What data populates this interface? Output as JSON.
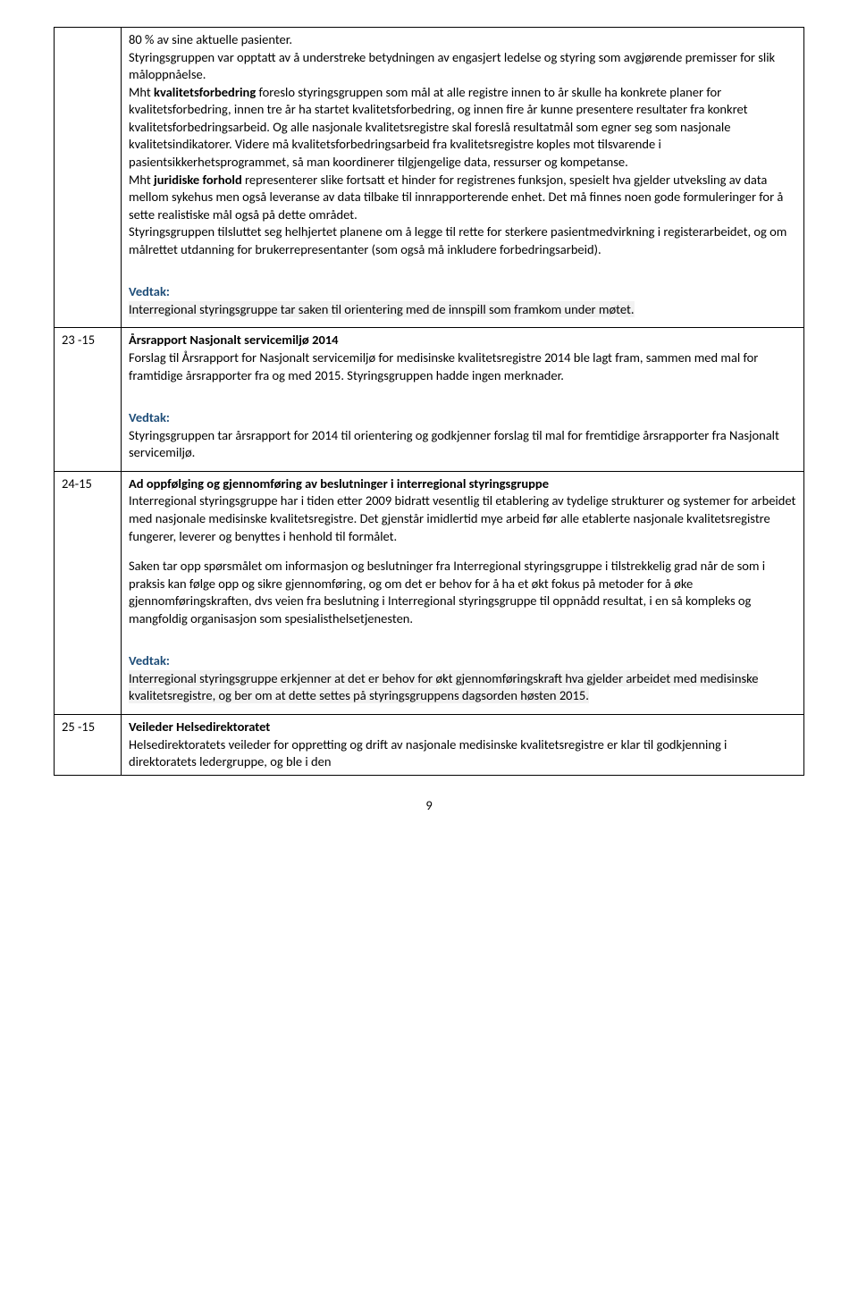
{
  "rows": [
    {
      "left": "",
      "content": {
        "p1a": "80 % av sine aktuelle pasienter.",
        "p1b": "Styringsgruppen var opptatt av å understreke betydningen av engasjert ledelse og styring som avgjørende premisser for slik måloppnåelse.",
        "p2_pre": "Mht ",
        "p2_b": "kvalitetsforbedring",
        "p2_post": " foreslo styringsgruppen som mål at alle registre innen to år skulle ha konkrete planer for kvalitetsforbedring, innen tre år ha startet kvalitetsforbedring, og innen fire år kunne presentere resultater fra konkret kvalitetsforbedringsarbeid. Og alle nasjonale kvalitetsregistre skal foreslå resultatmål som egner seg som nasjonale kvalitetsindikatorer. Videre må kvalitetsforbedringsarbeid fra kvalitetsregistre koples mot tilsvarende i pasientsikkerhetsprogrammet, så man koordinerer tilgjengelige data, ressurser og kompetanse.",
        "p3_pre": "Mht ",
        "p3_b": "juridiske forhold",
        "p3_post": " representerer slike fortsatt et hinder for registrenes funksjon, spesielt hva gjelder utveksling av data mellom sykehus men også leveranse av data tilbake til innrapporterende enhet. Det må finnes noen gode formuleringer for å sette realistiske mål også på dette området.",
        "p4": "Styringsgruppen tilsluttet seg helhjertet planene om å legge til rette for sterkere pasientmedvirkning i registerarbeidet, og om målrettet utdanning for brukerrepresentanter (som også må inkludere forbedringsarbeid).",
        "vedtak_label": "Vedtak:",
        "vedtak": "Interregional styringsgruppe tar saken til orientering med de innspill som framkom under møtet."
      }
    },
    {
      "left": "23 -15",
      "content": {
        "title": "Årsrapport Nasjonalt servicemiljø 2014",
        "p1": "Forslag til Årsrapport for Nasjonalt servicemiljø for medisinske kvalitetsregistre 2014 ble lagt fram, sammen med mal for framtidige årsrapporter fra og med 2015. Styringsgruppen hadde ingen merknader.",
        "vedtak_label": "Vedtak:",
        "vedtak": "Styringsgruppen tar årsrapport for 2014 til orientering og godkjenner forslag til mal for fremtidige årsrapporter fra Nasjonalt servicemiljø."
      }
    },
    {
      "left": "24-15",
      "content": {
        "title": "Ad oppfølging og gjennomføring av beslutninger i interregional styringsgruppe",
        "p1": "Interregional styringsgruppe har i tiden etter 2009 bidratt vesentlig til etablering av tydelige strukturer og systemer for arbeidet med nasjonale medisinske kvalitetsregistre. Det gjenstår imidlertid mye arbeid før alle etablerte nasjonale kvalitetsregistre fungerer, leverer og benyttes i henhold til formålet.",
        "p2": "Saken tar opp spørsmålet om informasjon og beslutninger fra Interregional styringsgruppe i tilstrekkelig grad når de som i praksis kan følge opp og sikre gjennomføring, og om det er behov for å ha et økt fokus på metoder for å øke gjennomføringskraften, dvs veien fra beslutning i Interregional styringsgruppe til oppnådd resultat, i en så kompleks og mangfoldig organisasjon som spesialisthelsetjenesten.",
        "vedtak_label": "Vedtak:",
        "vedtak": "Interregional styringsgruppe erkjenner at det er behov for økt gjennomføringskraft hva gjelder arbeidet med medisinske kvalitetsregistre, og ber om at dette settes på styringsgruppens dagsorden høsten 2015."
      }
    },
    {
      "left": "25 -15",
      "content": {
        "title": "Veileder Helsedirektoratet",
        "p1": "Helsedirektoratets veileder for oppretting og drift av nasjonale medisinske kvalitetsregistre er klar til godkjenning i direktoratets ledergruppe, og ble i den"
      }
    }
  ],
  "page_number": "9"
}
